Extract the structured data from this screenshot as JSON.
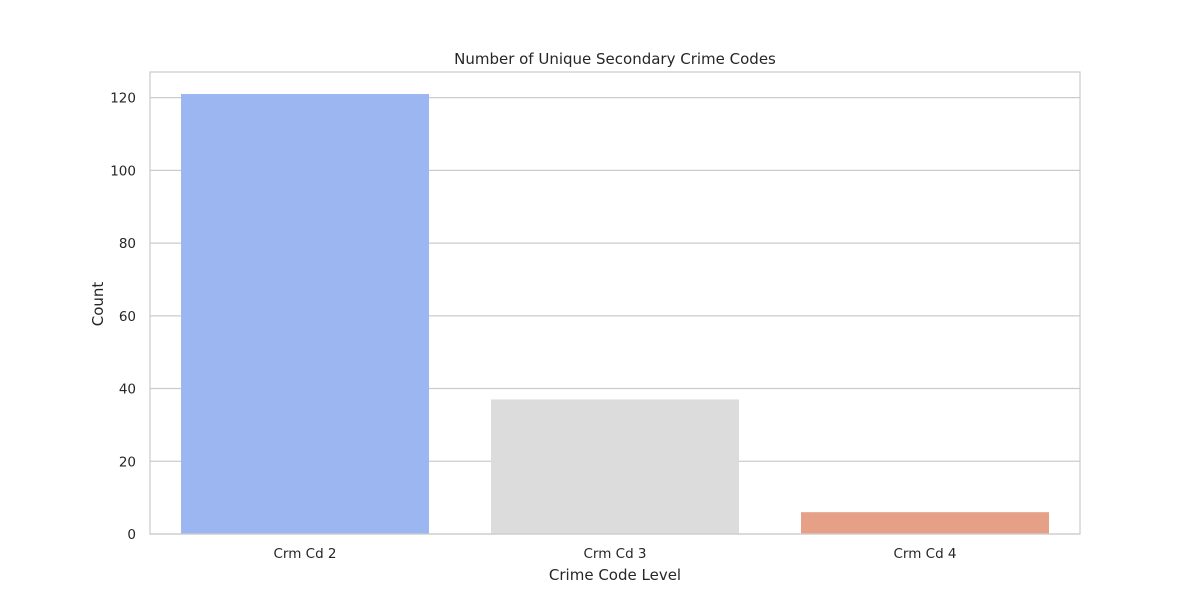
{
  "chart_data": {
    "type": "bar",
    "title": "Number of Unique Secondary Crime Codes",
    "xlabel": "Crime Code Level",
    "ylabel": "Count",
    "categories": [
      "Crm Cd 2",
      "Crm Cd 3",
      "Crm Cd 4"
    ],
    "values": [
      121,
      37,
      6
    ],
    "colors": [
      "#9bb6f0",
      "#dcdcdc",
      "#e6a088"
    ],
    "ylim": [
      0,
      127.05
    ],
    "yticks": [
      0,
      20,
      40,
      60,
      80,
      100,
      120
    ],
    "grid": true,
    "legend": "none"
  }
}
